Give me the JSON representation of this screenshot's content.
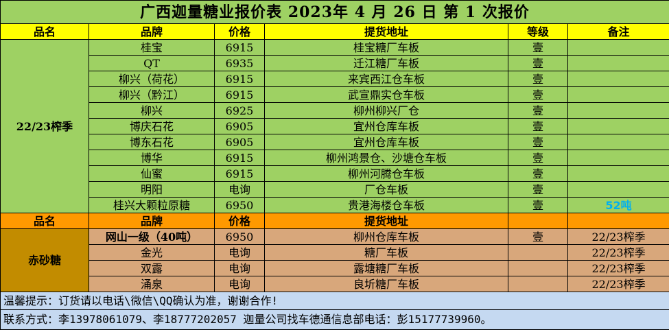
{
  "title": "广西迦量糖业报价表 2023年 4 月 26 日 第 1 次报价",
  "header1": {
    "category": "品名",
    "brand": "品牌",
    "price": "价格",
    "location": "提货地址",
    "grade": "等级",
    "note": "备注"
  },
  "section1": {
    "category": "22/23榨季",
    "rows": [
      {
        "brand": "桂宝",
        "price": "6915",
        "location": "桂宝糖厂车板",
        "grade": "壹",
        "note": ""
      },
      {
        "brand": "QT",
        "price": "6935",
        "location": "迁江糖厂车板",
        "grade": "壹",
        "note": ""
      },
      {
        "brand": "柳兴（荷花）",
        "price": "6915",
        "location": "来宾西江仓车板",
        "grade": "壹",
        "note": ""
      },
      {
        "brand": "柳兴（黔江）",
        "price": "6915",
        "location": "武宣鼎实仓车板",
        "grade": "壹",
        "note": ""
      },
      {
        "brand": "柳兴",
        "price": "6925",
        "location": "柳州柳兴厂仓",
        "grade": "壹",
        "note": ""
      },
      {
        "brand": "博庆石花",
        "price": "6905",
        "location": "宜州仓库车板",
        "grade": "壹",
        "note": ""
      },
      {
        "brand": "博东石花",
        "price": "6905",
        "location": "宜州仓库车板",
        "grade": "壹",
        "note": ""
      },
      {
        "brand": "博华",
        "price": "6915",
        "location": "柳州鸿景仓、沙塘仓车板",
        "grade": "壹",
        "note": ""
      },
      {
        "brand": "仙蜜",
        "price": "6915",
        "location": "柳州河腾仓车板",
        "grade": "壹",
        "note": ""
      },
      {
        "brand": "明阳",
        "price": "电询",
        "location": "厂仓车板",
        "grade": "壹",
        "note": ""
      },
      {
        "brand": "桂兴大颗粒原糖",
        "price": "6950",
        "location": "贵港海楼仓车板",
        "grade": "壹",
        "note": "52吨"
      }
    ]
  },
  "header2": {
    "category": "品名",
    "brand": "品牌",
    "price": "价格",
    "location": "提货地址",
    "grade": "",
    "note": ""
  },
  "section2": {
    "category": "赤砂糖",
    "rows": [
      {
        "brand": "网山一级（40吨）",
        "price": "6950",
        "location": "柳州仓库车板",
        "grade": "壹",
        "note": "22/23榨季"
      },
      {
        "brand": "金光",
        "price": "电询",
        "location": "糖厂车板",
        "grade": "",
        "note": "22/23榨季"
      },
      {
        "brand": "双露",
        "price": "电询",
        "location": "露塘糖厂车板",
        "grade": "",
        "note": "22/23榨季"
      },
      {
        "brand": "涌泉",
        "price": "电询",
        "location": "良圻糖厂车板",
        "grade": "",
        "note": "22/23榨季"
      }
    ]
  },
  "footer": {
    "tip": "温馨提示：订货请以电话\\微信\\QQ确认为准，谢谢合作!",
    "contact": "联系方式：李13978061079、李18777202057    迦量公司找车德通信息部电话：彭15177739960。"
  }
}
